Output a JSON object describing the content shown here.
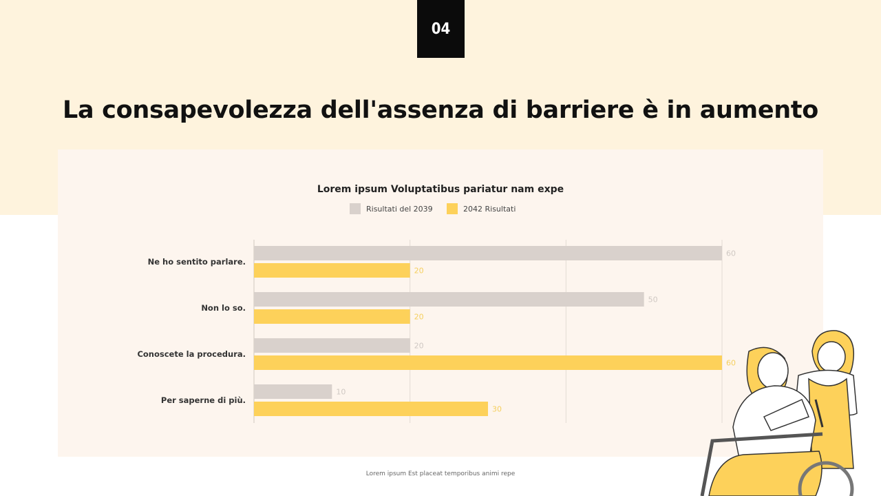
{
  "slide": {
    "number": "04",
    "title": "La consapevolezza dell'assenza di barriere è in aumento",
    "footer": "Lorem ipsum Est placeat temporibus animi repe"
  },
  "colors": {
    "band": "#fef3dd",
    "panel": "#fdf5ee",
    "gray": "#d9d1cc",
    "yellow": "#fdd15a"
  },
  "chart_data": {
    "type": "bar",
    "orientation": "horizontal",
    "title": "Lorem ipsum Voluptatibus pariatur nam expe",
    "categories": [
      "Ne ho sentito parlare.",
      "Non lo so.",
      "Conoscete la procedura.",
      "Per saperne di più."
    ],
    "series": [
      {
        "name": "Risultati del 2039",
        "color": "#d9d1cc",
        "values": [
          60,
          50,
          20,
          10
        ]
      },
      {
        "name": "2042 Risultati",
        "color": "#fdd15a",
        "values": [
          20,
          20,
          60,
          30
        ]
      }
    ],
    "xlim": [
      0,
      60
    ],
    "grid": true,
    "legend": "top"
  }
}
